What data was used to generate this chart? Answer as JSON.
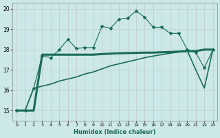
{
  "xlabel": "Humidex (Indice chaleur)",
  "background_color": "#cce8e8",
  "grid_color": "#bbbbbb",
  "color": "#1a6b5a",
  "xlim": [
    -0.5,
    23.5
  ],
  "ylim": [
    14.5,
    20.3
  ],
  "yticks": [
    15,
    16,
    17,
    18,
    19,
    20
  ],
  "xticks": [
    0,
    1,
    2,
    3,
    4,
    5,
    6,
    7,
    8,
    9,
    10,
    11,
    12,
    13,
    14,
    15,
    16,
    17,
    18,
    19,
    20,
    21,
    22,
    23
  ],
  "jagged_x": [
    0,
    1,
    2,
    3,
    4,
    5,
    6,
    7,
    8,
    9,
    10,
    11,
    12,
    13,
    14,
    15,
    16,
    17,
    18,
    19,
    20,
    21,
    22,
    23
  ],
  "jagged_y": [
    15.0,
    15.0,
    16.1,
    17.7,
    17.6,
    18.0,
    18.5,
    18.05,
    18.1,
    18.1,
    19.15,
    19.05,
    19.5,
    19.55,
    19.9,
    19.6,
    19.1,
    19.1,
    18.8,
    18.8,
    18.0,
    17.85,
    17.1,
    18.0
  ],
  "flat_x": [
    0,
    1,
    2,
    3,
    4,
    5,
    6,
    7,
    8,
    9,
    10,
    11,
    12,
    13,
    14,
    15,
    16,
    17,
    18,
    19,
    20,
    21,
    22,
    23
  ],
  "flat_y": [
    15.0,
    15.0,
    15.0,
    17.75,
    17.75,
    17.75,
    17.75,
    17.75,
    17.75,
    17.75,
    17.78,
    17.8,
    17.82,
    17.83,
    17.84,
    17.85,
    17.85,
    17.87,
    17.88,
    17.9,
    17.92,
    17.93,
    18.0,
    18.0
  ],
  "ramp_x": [
    0,
    1,
    2,
    3,
    4,
    5,
    6,
    7,
    8,
    9,
    10,
    11,
    12,
    13,
    14,
    15,
    16,
    17,
    18,
    19,
    20,
    21,
    22,
    23
  ],
  "ramp_y": [
    15.0,
    15.0,
    16.1,
    16.2,
    16.3,
    16.45,
    16.55,
    16.65,
    16.8,
    16.9,
    17.05,
    17.2,
    17.3,
    17.4,
    17.5,
    17.6,
    17.68,
    17.75,
    17.82,
    17.88,
    17.95,
    17.0,
    16.1,
    18.0
  ]
}
